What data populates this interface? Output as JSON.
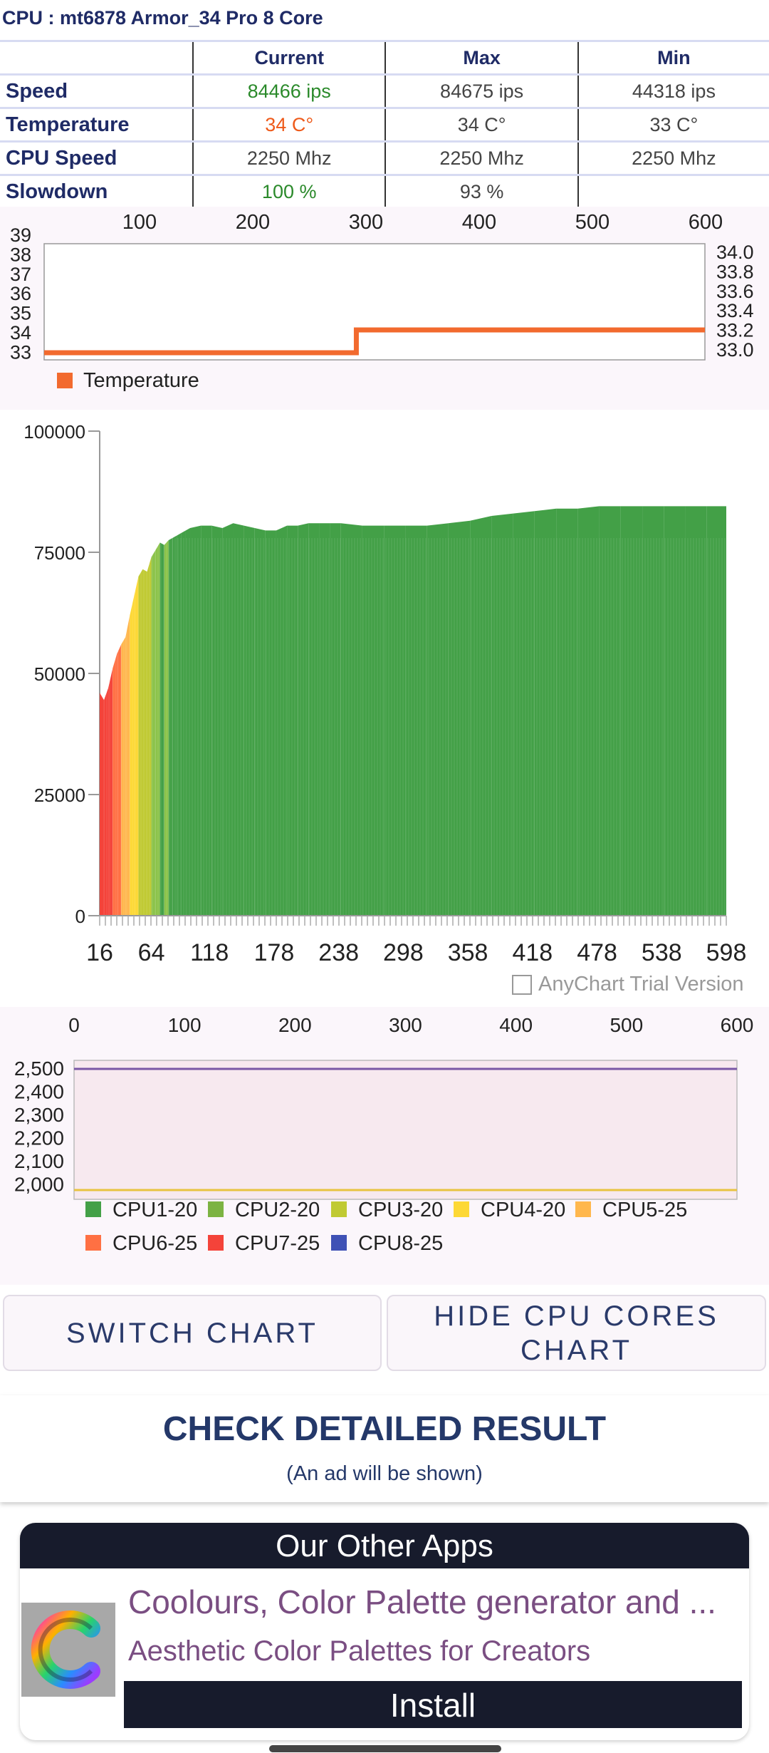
{
  "header": {
    "title": "CPU : mt6878 Armor_34  Pro 8 Core"
  },
  "table": {
    "columns": [
      "Current",
      "Max",
      "Min"
    ],
    "rows": [
      {
        "label": "Speed",
        "current": "84466 ips",
        "max": "84675 ips",
        "min": "44318 ips"
      },
      {
        "label": "Temperature",
        "current": "34 C°",
        "max": "34 C°",
        "min": "33 C°"
      },
      {
        "label": "CPU Speed",
        "current": "2250 Mhz",
        "max": "2250 Mhz",
        "min": "2250 Mhz"
      },
      {
        "label": "Slowdown",
        "current": "100 %",
        "max": "93 %",
        "min": ""
      }
    ]
  },
  "colors": {
    "accent": "#1f2b66",
    "temp_line": "#f26a2e",
    "green": "#43a047",
    "ad_dark": "#171b2c",
    "purple_line": "#7a58a6",
    "yellow_line": "#e8c441"
  },
  "chart_data": [
    {
      "type": "line",
      "x_ticks": [
        "100",
        "200",
        "300",
        "400",
        "500",
        "600"
      ],
      "y_left_ticks": [
        "39",
        "38",
        "37",
        "36",
        "35",
        "34",
        "33"
      ],
      "y_right_ticks": [
        "34.0",
        "33.8",
        "33.6",
        "33.4",
        "33.2",
        "33.0"
      ],
      "legend": [
        "Temperature"
      ],
      "series": [
        {
          "name": "Temperature",
          "x": [
            1,
            284,
            284,
            600
          ],
          "values": [
            33,
            33,
            34,
            34
          ]
        }
      ]
    },
    {
      "type": "area",
      "y_ticks": [
        "100000",
        "75000",
        "50000",
        "25000",
        "0"
      ],
      "x_ticks": [
        "16",
        "64",
        "118",
        "178",
        "238",
        "298",
        "358",
        "418",
        "478",
        "538",
        "598"
      ],
      "ylim": [
        0,
        100000
      ],
      "x": [
        16,
        20,
        24,
        28,
        32,
        36,
        40,
        44,
        48,
        52,
        56,
        60,
        64,
        68,
        72,
        76,
        80,
        84,
        88,
        92,
        96,
        100,
        110,
        120,
        130,
        140,
        150,
        160,
        170,
        180,
        190,
        200,
        210,
        220,
        230,
        240,
        260,
        280,
        300,
        320,
        340,
        360,
        380,
        400,
        420,
        440,
        460,
        480,
        500,
        520,
        540,
        560,
        580,
        598
      ],
      "values": [
        46000,
        44500,
        47000,
        51000,
        54000,
        56000,
        57500,
        62000,
        66000,
        70000,
        71500,
        71000,
        74000,
        75500,
        77000,
        76500,
        77500,
        78000,
        78500,
        79000,
        79500,
        80000,
        80500,
        80500,
        80000,
        81000,
        80500,
        80000,
        79500,
        79500,
        80500,
        80500,
        81000,
        81000,
        81000,
        81000,
        80500,
        80500,
        80500,
        80500,
        81000,
        81500,
        82500,
        83000,
        83500,
        84000,
        84000,
        84500,
        84500,
        84500,
        84500,
        84500,
        84500,
        84500
      ],
      "watermark": "AnyChart Trial Version"
    },
    {
      "type": "line",
      "x_ticks": [
        "0",
        "100",
        "200",
        "300",
        "400",
        "500",
        "600"
      ],
      "y_ticks": [
        "2,500",
        "2,400",
        "2,300",
        "2,200",
        "2,100",
        "2,000"
      ],
      "series": [
        {
          "name": "CPU8-25",
          "values": [
            2500,
            2500
          ]
        },
        {
          "name": "CPU3-20",
          "values": [
            2000,
            2000
          ]
        }
      ],
      "legend": [
        {
          "name": "CPU1-20",
          "color": "#43a047"
        },
        {
          "name": "CPU2-20",
          "color": "#7cb342"
        },
        {
          "name": "CPU3-20",
          "color": "#c0ca33"
        },
        {
          "name": "CPU4-20",
          "color": "#fdd835"
        },
        {
          "name": "CPU5-25",
          "color": "#ffb74d"
        },
        {
          "name": "CPU6-25",
          "color": "#ff7043"
        },
        {
          "name": "CPU7-25",
          "color": "#f4433a"
        },
        {
          "name": "CPU8-25",
          "color": "#3f51b5"
        }
      ]
    }
  ],
  "buttons": {
    "switch_chart": "SWITCH CHART",
    "hide_cores": "HIDE CPU CORES CHART"
  },
  "detailed": {
    "title": "CHECK DETAILED RESULT",
    "subtitle": "(An ad will be shown)"
  },
  "ad": {
    "header": "Our Other Apps",
    "app_name": "Coolours, Color Palette generator and ...",
    "app_desc": "Aesthetic Color Palettes for Creators",
    "install": "Install",
    "logo_letter": "C",
    "logo_icon": "colour-palette-c-logo"
  }
}
